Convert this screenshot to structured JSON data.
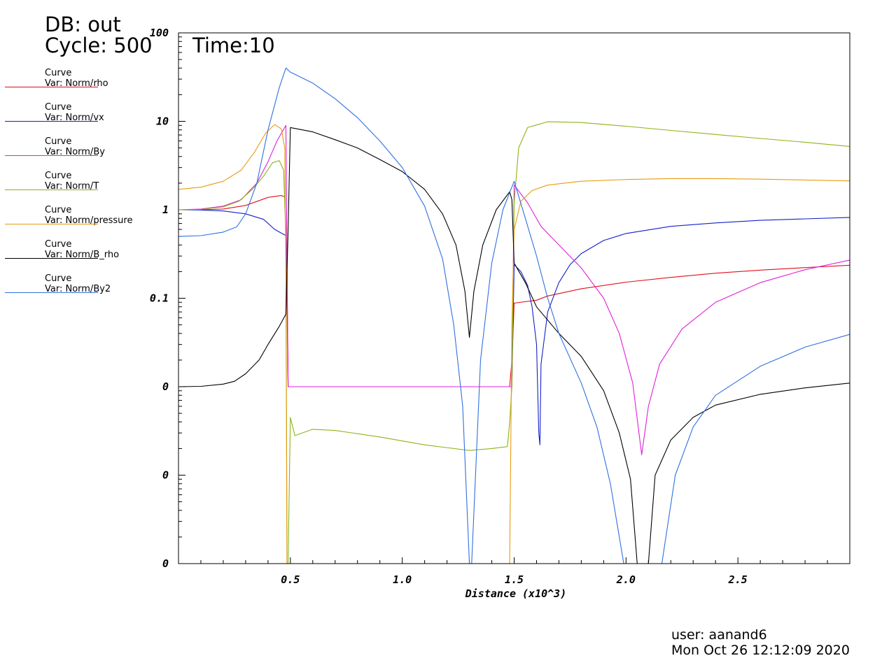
{
  "header": {
    "db": "DB: out",
    "cycle": "Cycle: 500",
    "time": "Time:10"
  },
  "legend": [
    {
      "title": "Curve",
      "var": "Var: Norm/rho",
      "color": "#e0101a"
    },
    {
      "title": "Curve",
      "var": "Var: Norm/vx",
      "color": "#1420c8"
    },
    {
      "title": "Curve",
      "var": "Var: Norm/By",
      "color": "#e020d8"
    },
    {
      "title": "Curve",
      "var": "Var: Norm/T",
      "color": "#8cb418"
    },
    {
      "title": "Curve",
      "var": "Var: Norm/pressure",
      "color": "#e89a10"
    },
    {
      "title": "Curve",
      "var": "Var: Norm/B_rho",
      "color": "#000000"
    },
    {
      "title": "Curve",
      "var": "Var: Norm/By2",
      "color": "#3070e0"
    }
  ],
  "footer": {
    "user": "user: aanand6",
    "date": "Mon Oct 26 12:12:09 2020"
  },
  "chart_data": {
    "type": "line",
    "xlabel": "Distance (x10^3)",
    "ylabel": "",
    "xlim": [
      0,
      3.0
    ],
    "yscale": "log",
    "y_ticks": [
      {
        "label": "100",
        "decade": 2
      },
      {
        "label": "10",
        "decade": 1
      },
      {
        "label": "1",
        "decade": 0
      },
      {
        "label": "0.1",
        "decade": -1
      },
      {
        "label": "0",
        "decade": -2
      },
      {
        "label": "0",
        "decade": -3
      },
      {
        "label": "0",
        "decade": -4
      }
    ],
    "x_ticks": [
      {
        "label": "0.5",
        "value": 0.5
      },
      {
        "label": "1.0",
        "value": 1.0
      },
      {
        "label": "1.5",
        "value": 1.5
      },
      {
        "label": "2.0",
        "value": 2.0
      },
      {
        "label": "2.5",
        "value": 2.5
      }
    ],
    "series": [
      {
        "name": "Var: Norm/rho",
        "color": "#e0101a",
        "points": [
          [
            0,
            1
          ],
          [
            0.1,
            1.0
          ],
          [
            0.2,
            1.02
          ],
          [
            0.3,
            1.12
          ],
          [
            0.4,
            1.38
          ],
          [
            0.46,
            1.45
          ],
          [
            0.475,
            1.4
          ],
          [
            0.48,
            0.6
          ],
          [
            0.485,
            0.1
          ],
          [
            0.49,
            0.01
          ],
          [
            0.5,
            0.01
          ],
          [
            0.8,
            0.01
          ],
          [
            1.1,
            0.01
          ],
          [
            1.4,
            0.01
          ],
          [
            1.48,
            0.01
          ],
          [
            1.49,
            0.02
          ],
          [
            1.5,
            0.088
          ],
          [
            1.6,
            0.095
          ],
          [
            1.65,
            0.106
          ],
          [
            1.8,
            0.128
          ],
          [
            2.0,
            0.152
          ],
          [
            2.2,
            0.172
          ],
          [
            2.4,
            0.192
          ],
          [
            2.6,
            0.208
          ],
          [
            2.8,
            0.222
          ],
          [
            3.0,
            0.236
          ]
        ]
      },
      {
        "name": "Var: Norm/vx",
        "color": "#1420c8",
        "points": [
          [
            0,
            1
          ],
          [
            0.1,
            0.995
          ],
          [
            0.2,
            0.97
          ],
          [
            0.3,
            0.9
          ],
          [
            0.38,
            0.78
          ],
          [
            0.43,
            0.6
          ],
          [
            0.48,
            0.51
          ],
          [
            0.485,
            0.2
          ],
          [
            0.49,
            0.01
          ],
          [
            1.49,
            0.01
          ],
          [
            1.5,
            0.24
          ],
          [
            1.53,
            0.2
          ],
          [
            1.56,
            0.14
          ],
          [
            1.58,
            0.08
          ],
          [
            1.6,
            0.03
          ],
          [
            1.61,
            0.003
          ],
          [
            1.615,
            0.0022
          ],
          [
            1.62,
            0.018
          ],
          [
            1.65,
            0.07
          ],
          [
            1.7,
            0.15
          ],
          [
            1.75,
            0.24
          ],
          [
            1.8,
            0.32
          ],
          [
            1.9,
            0.45
          ],
          [
            2.0,
            0.54
          ],
          [
            2.2,
            0.65
          ],
          [
            2.4,
            0.71
          ],
          [
            2.6,
            0.76
          ],
          [
            2.8,
            0.79
          ],
          [
            3.0,
            0.82
          ]
        ]
      },
      {
        "name": "Var: Norm/By",
        "color": "#e020d8",
        "points": [
          [
            0,
            1
          ],
          [
            0.1,
            1.02
          ],
          [
            0.2,
            1.1
          ],
          [
            0.28,
            1.3
          ],
          [
            0.35,
            2.0
          ],
          [
            0.4,
            3.5
          ],
          [
            0.44,
            6
          ],
          [
            0.48,
            9
          ],
          [
            0.49,
            0.01
          ],
          [
            1.49,
            0.01
          ],
          [
            1.5,
            1.9
          ],
          [
            1.56,
            1.2
          ],
          [
            1.62,
            0.65
          ],
          [
            1.7,
            0.4
          ],
          [
            1.8,
            0.22
          ],
          [
            1.9,
            0.1
          ],
          [
            1.97,
            0.04
          ],
          [
            2.03,
            0.011
          ],
          [
            2.07,
            0.0017
          ],
          [
            2.1,
            0.006
          ],
          [
            2.15,
            0.018
          ],
          [
            2.25,
            0.045
          ],
          [
            2.4,
            0.09
          ],
          [
            2.6,
            0.15
          ],
          [
            2.8,
            0.21
          ],
          [
            3.0,
            0.27
          ]
        ]
      },
      {
        "name": "Var: Norm/T",
        "color": "#8cb418",
        "points": [
          [
            0,
            1
          ],
          [
            0.1,
            1.01
          ],
          [
            0.2,
            1.08
          ],
          [
            0.27,
            1.25
          ],
          [
            0.33,
            1.7
          ],
          [
            0.38,
            2.4
          ],
          [
            0.42,
            3.4
          ],
          [
            0.45,
            3.6
          ],
          [
            0.47,
            2.8
          ],
          [
            0.48,
            0.5
          ],
          [
            0.485,
            0.0001
          ],
          [
            0.49,
            0.0001
          ],
          [
            0.5,
            0.0045
          ],
          [
            0.52,
            0.0028
          ],
          [
            0.6,
            0.0033
          ],
          [
            0.7,
            0.0032
          ],
          [
            0.9,
            0.0027
          ],
          [
            1.1,
            0.0022
          ],
          [
            1.3,
            0.0019
          ],
          [
            1.4,
            0.002
          ],
          [
            1.47,
            0.0021
          ],
          [
            1.48,
            0.004
          ],
          [
            1.49,
            0.01
          ],
          [
            1.5,
            1.2
          ],
          [
            1.52,
            5
          ],
          [
            1.56,
            8.5
          ],
          [
            1.65,
            9.9
          ],
          [
            1.8,
            9.7
          ],
          [
            2.0,
            8.8
          ],
          [
            2.2,
            7.9
          ],
          [
            2.4,
            7.1
          ],
          [
            2.6,
            6.4
          ],
          [
            2.8,
            5.8
          ],
          [
            3.0,
            5.2
          ]
        ]
      },
      {
        "name": "Var: Norm/pressure",
        "color": "#e89a10",
        "points": [
          [
            0,
            1.7
          ],
          [
            0.1,
            1.8
          ],
          [
            0.2,
            2.1
          ],
          [
            0.28,
            2.8
          ],
          [
            0.34,
            4.5
          ],
          [
            0.39,
            7.4
          ],
          [
            0.43,
            9.2
          ],
          [
            0.46,
            8.2
          ],
          [
            0.475,
            5
          ],
          [
            0.48,
            0.2
          ],
          [
            0.485,
            0.0001
          ],
          [
            0.49,
            0.0001
          ],
          [
            1.48,
            0.0001
          ],
          [
            1.49,
            0.05
          ],
          [
            1.5,
            0.6
          ],
          [
            1.53,
            1.25
          ],
          [
            1.58,
            1.65
          ],
          [
            1.65,
            1.9
          ],
          [
            1.8,
            2.1
          ],
          [
            2.0,
            2.2
          ],
          [
            2.2,
            2.25
          ],
          [
            2.4,
            2.25
          ],
          [
            2.6,
            2.22
          ],
          [
            2.8,
            2.17
          ],
          [
            3.0,
            2.12
          ]
        ]
      },
      {
        "name": "Var: Norm/B_rho",
        "color": "#000000",
        "points": [
          [
            0,
            0.01
          ],
          [
            0.1,
            0.0101
          ],
          [
            0.2,
            0.0107
          ],
          [
            0.25,
            0.0115
          ],
          [
            0.3,
            0.014
          ],
          [
            0.36,
            0.02
          ],
          [
            0.4,
            0.03
          ],
          [
            0.45,
            0.048
          ],
          [
            0.48,
            0.066
          ],
          [
            0.485,
            0.2
          ],
          [
            0.49,
            0.6
          ],
          [
            0.5,
            8.5
          ],
          [
            0.6,
            7.6
          ],
          [
            0.7,
            6.2
          ],
          [
            0.8,
            5.0
          ],
          [
            0.9,
            3.7
          ],
          [
            1.0,
            2.7
          ],
          [
            1.1,
            1.7
          ],
          [
            1.18,
            0.9
          ],
          [
            1.24,
            0.4
          ],
          [
            1.28,
            0.12
          ],
          [
            1.3,
            0.036
          ],
          [
            1.32,
            0.12
          ],
          [
            1.36,
            0.4
          ],
          [
            1.42,
            1.0
          ],
          [
            1.48,
            1.6
          ],
          [
            1.49,
            1.3
          ],
          [
            1.5,
            0.25
          ],
          [
            1.55,
            0.15
          ],
          [
            1.6,
            0.08
          ],
          [
            1.7,
            0.04
          ],
          [
            1.8,
            0.022
          ],
          [
            1.9,
            0.009
          ],
          [
            1.97,
            0.003
          ],
          [
            2.02,
            0.0009
          ],
          [
            2.05,
            0.0001
          ],
          [
            2.1,
            0.0001
          ],
          [
            2.13,
            0.001
          ],
          [
            2.2,
            0.0025
          ],
          [
            2.3,
            0.0045
          ],
          [
            2.4,
            0.0062
          ],
          [
            2.6,
            0.0082
          ],
          [
            2.8,
            0.0097
          ],
          [
            3.0,
            0.011
          ]
        ]
      },
      {
        "name": "Var: Norm/By2",
        "color": "#3070e0",
        "points": [
          [
            0,
            0.5
          ],
          [
            0.1,
            0.51
          ],
          [
            0.2,
            0.56
          ],
          [
            0.26,
            0.64
          ],
          [
            0.3,
            0.9
          ],
          [
            0.35,
            2
          ],
          [
            0.4,
            8
          ],
          [
            0.45,
            24
          ],
          [
            0.48,
            40
          ],
          [
            0.5,
            36
          ],
          [
            0.6,
            27
          ],
          [
            0.7,
            18
          ],
          [
            0.8,
            11
          ],
          [
            0.9,
            6
          ],
          [
            1.0,
            3
          ],
          [
            1.1,
            1.1
          ],
          [
            1.18,
            0.28
          ],
          [
            1.23,
            0.05
          ],
          [
            1.27,
            0.006
          ],
          [
            1.3,
            0.0001
          ],
          [
            1.31,
            0.0001
          ],
          [
            1.35,
            0.02
          ],
          [
            1.4,
            0.25
          ],
          [
            1.45,
            1
          ],
          [
            1.5,
            2.1
          ],
          [
            1.55,
            0.8
          ],
          [
            1.6,
            0.3
          ],
          [
            1.65,
            0.1
          ],
          [
            1.7,
            0.04
          ],
          [
            1.8,
            0.011
          ],
          [
            1.87,
            0.0035
          ],
          [
            1.93,
            0.0008
          ],
          [
            1.99,
            0.0001
          ],
          [
            2.16,
            0.0001
          ],
          [
            2.22,
            0.001
          ],
          [
            2.3,
            0.0035
          ],
          [
            2.4,
            0.008
          ],
          [
            2.6,
            0.017
          ],
          [
            2.8,
            0.028
          ],
          [
            3.0,
            0.039
          ]
        ]
      }
    ]
  }
}
